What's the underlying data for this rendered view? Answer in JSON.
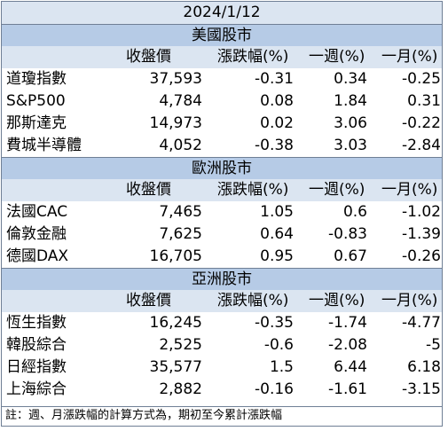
{
  "title": "2024/1/12",
  "headers": [
    "收盤價",
    "漲跌幅(%)",
    "一週(%)",
    "一月(%)"
  ],
  "sections": [
    {
      "name": "美國股市",
      "rows": [
        {
          "name": "道瓊指數",
          "close": "37,593",
          "change": "-0.31",
          "week": "0.34",
          "month": "-0.25"
        },
        {
          "name": "S&P500",
          "close": "4,784",
          "change": "0.08",
          "week": "1.84",
          "month": "0.31"
        },
        {
          "name": "那斯達克",
          "close": "14,973",
          "change": "0.02",
          "week": "3.06",
          "month": "-0.22"
        },
        {
          "name": "費城半導體",
          "close": "4,052",
          "change": "-0.38",
          "week": "3.03",
          "month": "-2.84"
        }
      ]
    },
    {
      "name": "歐洲股市",
      "rows": [
        {
          "name": "法國CAC",
          "close": "7,465",
          "change": "1.05",
          "week": "0.6",
          "month": "-1.02"
        },
        {
          "name": "倫敦金融",
          "close": "7,625",
          "change": "0.64",
          "week": "-0.83",
          "month": "-1.39"
        },
        {
          "name": "德國DAX",
          "close": "16,705",
          "change": "0.95",
          "week": "0.67",
          "month": "-0.26"
        }
      ]
    },
    {
      "name": "亞洲股市",
      "rows": [
        {
          "name": "恆生指數",
          "close": "16,245",
          "change": "-0.35",
          "week": "-1.74",
          "month": "-4.77"
        },
        {
          "name": "韓股綜合",
          "close": "2,525",
          "change": "-0.6",
          "week": "-2.08",
          "month": "-5"
        },
        {
          "name": "日經指數",
          "close": "35,577",
          "change": "1.5",
          "week": "6.44",
          "month": "6.18"
        },
        {
          "name": "上海綜合",
          "close": "2,882",
          "change": "-0.16",
          "week": "-1.61",
          "month": "-3.15"
        }
      ]
    }
  ],
  "note": "註：週、月漲跌幅的計算方式為，期初至今累計漲跌幅",
  "colors": {
    "title_bg": "#dbe5f1",
    "section_bg": "#b6cbe6",
    "border": "#6f7f95"
  }
}
